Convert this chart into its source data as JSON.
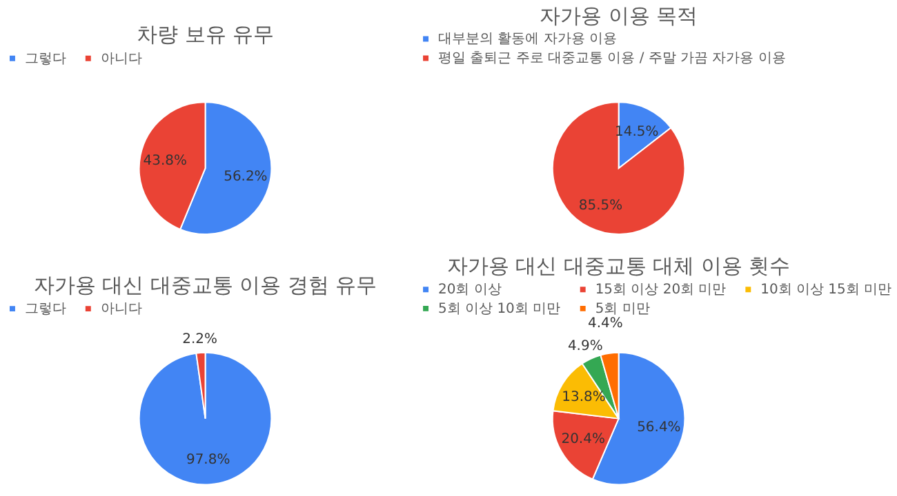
{
  "chart_data": [
    {
      "type": "pie",
      "title": "차량 보유 유무",
      "categories": [
        "그렇다",
        "아니다"
      ],
      "values": [
        56.2,
        43.8
      ],
      "colors": [
        "#4285f4",
        "#ea4335"
      ],
      "value_labels": [
        "56.2%",
        "43.8%"
      ],
      "legend": "top"
    },
    {
      "type": "pie",
      "title": "자가용 이용 목적",
      "categories": [
        "대부분의 활동에 자가용 이용",
        "평일 출퇴근 주로 대중교통 이용 / 주말 가끔 자가용 이용"
      ],
      "values": [
        14.5,
        85.5
      ],
      "colors": [
        "#4285f4",
        "#ea4335"
      ],
      "value_labels": [
        "14.5%",
        "85.5%"
      ],
      "legend": "top"
    },
    {
      "type": "pie",
      "title": "자가용 대신 대중교통 이용 경험 유무",
      "categories": [
        "그렇다",
        "아니다"
      ],
      "values": [
        97.8,
        2.2
      ],
      "colors": [
        "#4285f4",
        "#ea4335"
      ],
      "value_labels": [
        "97.8%",
        "2.2%"
      ],
      "legend": "top"
    },
    {
      "type": "pie",
      "title": "자가용 대신 대중교통 대체 이용 횟수",
      "categories": [
        "20회 이상",
        "15회 이상 20회 미만",
        "10회 이상 15회 미만",
        "5회 이상 10회 미만",
        "5회 미만"
      ],
      "values": [
        56.4,
        20.4,
        13.8,
        4.9,
        4.4
      ],
      "colors": [
        "#4285f4",
        "#ea4335",
        "#fbbc04",
        "#34a853",
        "#ff6d01"
      ],
      "value_labels": [
        "56.4%",
        "20.4%",
        "13.8%",
        "4.9%",
        "4.4%"
      ],
      "legend": "top"
    }
  ]
}
